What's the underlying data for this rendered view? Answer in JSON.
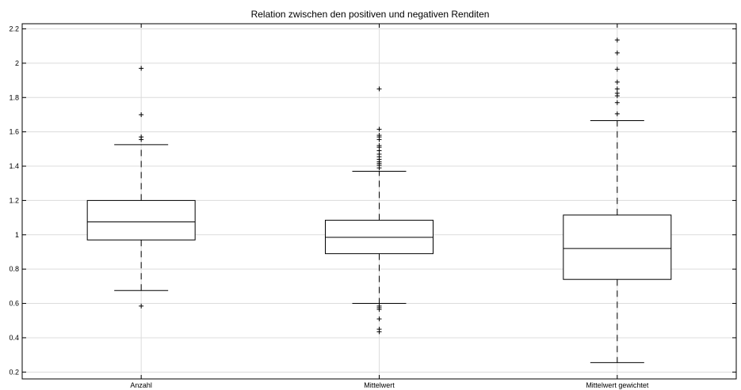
{
  "chart_data": {
    "type": "box",
    "title": "Relation zwischen den positiven und negativen Renditen",
    "xlabel": "",
    "ylabel": "",
    "ylim": [
      0.16,
      2.23
    ],
    "yticks": [
      0.2,
      0.4,
      0.6,
      0.8,
      1,
      1.2,
      1.4,
      1.6,
      1.8,
      2,
      2.2
    ],
    "ytick_labels": [
      "0.2",
      "0.4",
      "0.6",
      "0.8",
      "1",
      "1.2",
      "1.4",
      "1.6",
      "1.8",
      "2",
      "2.2"
    ],
    "grid": true,
    "categories": [
      "Anzahl",
      "Mittelwert",
      "Mittelwert gewichtet"
    ],
    "boxes": [
      {
        "category": "Anzahl",
        "whisker_low": 0.675,
        "q1": 0.97,
        "median": 1.075,
        "q3": 1.2,
        "whisker_high": 1.525,
        "outliers": [
          0.585,
          1.555,
          1.57,
          1.7,
          1.97
        ]
      },
      {
        "category": "Mittelwert",
        "whisker_low": 0.6,
        "q1": 0.89,
        "median": 0.985,
        "q3": 1.085,
        "whisker_high": 1.37,
        "outliers": [
          0.435,
          0.45,
          0.51,
          0.565,
          0.575,
          0.585,
          1.39,
          1.405,
          1.415,
          1.425,
          1.44,
          1.455,
          1.47,
          1.49,
          1.51,
          1.52,
          1.555,
          1.57,
          1.58,
          1.615,
          1.85
        ]
      },
      {
        "category": "Mittelwert gewichtet",
        "whisker_low": 0.255,
        "q1": 0.74,
        "median": 0.92,
        "q3": 1.115,
        "whisker_high": 1.665,
        "outliers": [
          1.705,
          1.77,
          1.81,
          1.825,
          1.85,
          1.89,
          1.965,
          2.06,
          2.135
        ]
      }
    ]
  }
}
